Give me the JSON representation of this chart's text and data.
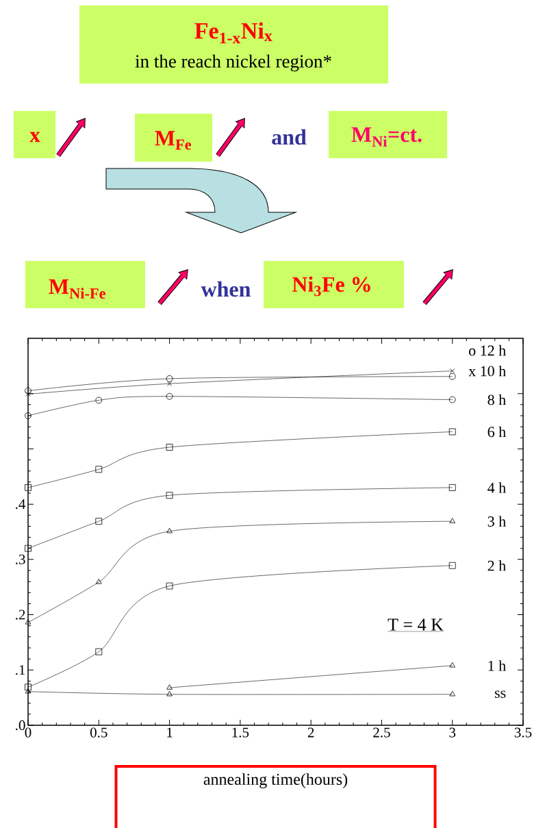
{
  "chart_data": {
    "type": "line",
    "title": "**Fe$_{1-x}$Ni$_{x}$**",
    "subtitle": "in the reach nickel region*",
    "xlabel": "annealing time(hours)",
    "annotations": [
      "x",
      "M$_{Fe}$",
      "and",
      "M$_{Ni}$=ct.",
      "M$_{Ni-Fe}$",
      "when",
      "Ni$_{3}$Fe %",
      "T = 4 K"
    ],
    "xlim": [
      0,
      3.5
    ],
    "xticks": [
      0,
      0.5,
      1,
      1.5,
      2,
      2.5,
      3,
      3.5
    ],
    "ylim": [
      0,
      0.7
    ],
    "yticks": [
      {
        "value": 0,
        "label": ".0"
      },
      {
        "value": 0.1,
        "label": ".1"
      },
      {
        "value": 0.2,
        "label": ".2"
      },
      {
        "value": 0.3,
        "label": ".3"
      },
      {
        "value": 0.4,
        "label": ".4"
      },
      {
        "value": 0.5,
        "label": null
      },
      {
        "value": 0.6,
        "label": null
      }
    ],
    "grid": false,
    "legend": "right",
    "series": [
      {
        "name": "o 12 h",
        "color": "#000000",
        "marker": "circle",
        "x": [
          0,
          1,
          3
        ],
        "values": [
          0.605,
          0.627,
          0.631
        ]
      },
      {
        "name": "x 10 h",
        "color": "#000000",
        "marker": "cross",
        "x": [
          0,
          1,
          3
        ],
        "values": [
          0.599,
          0.618,
          0.641
        ]
      },
      {
        "name": "8 h",
        "color": "#000000",
        "marker": "circle",
        "x": [
          0,
          0.5,
          1,
          3
        ],
        "values": [
          0.56,
          0.588,
          0.595,
          0.589
        ]
      },
      {
        "name": "6 h",
        "color": "#000000",
        "marker": "square",
        "x": [
          0,
          0.5,
          1,
          3
        ],
        "values": [
          0.43,
          0.463,
          0.503,
          0.531
        ]
      },
      {
        "name": "4 h",
        "color": "#000000",
        "marker": "square",
        "x": [
          0,
          0.5,
          1,
          3
        ],
        "values": [
          0.32,
          0.369,
          0.416,
          0.43
        ]
      },
      {
        "name": "3 h",
        "color": "#000000",
        "marker": "triangle",
        "x": [
          0,
          0.5,
          1,
          3
        ],
        "values": [
          0.186,
          0.259,
          0.351,
          0.369
        ]
      },
      {
        "name": "2 h",
        "color": "#000000",
        "marker": "square",
        "x": [
          0,
          0.5,
          1,
          3
        ],
        "values": [
          0.069,
          0.133,
          0.252,
          0.289
        ]
      },
      {
        "name": "1 h",
        "color": "#000000",
        "marker": "triangle",
        "x": [
          1,
          3
        ],
        "values": [
          0.068,
          0.108
        ]
      },
      {
        "name": "ss",
        "color": "#000000",
        "marker": "triangle",
        "x": [
          0,
          1,
          3
        ],
        "values": [
          0.061,
          0.056,
          0.056
        ]
      }
    ]
  }
}
